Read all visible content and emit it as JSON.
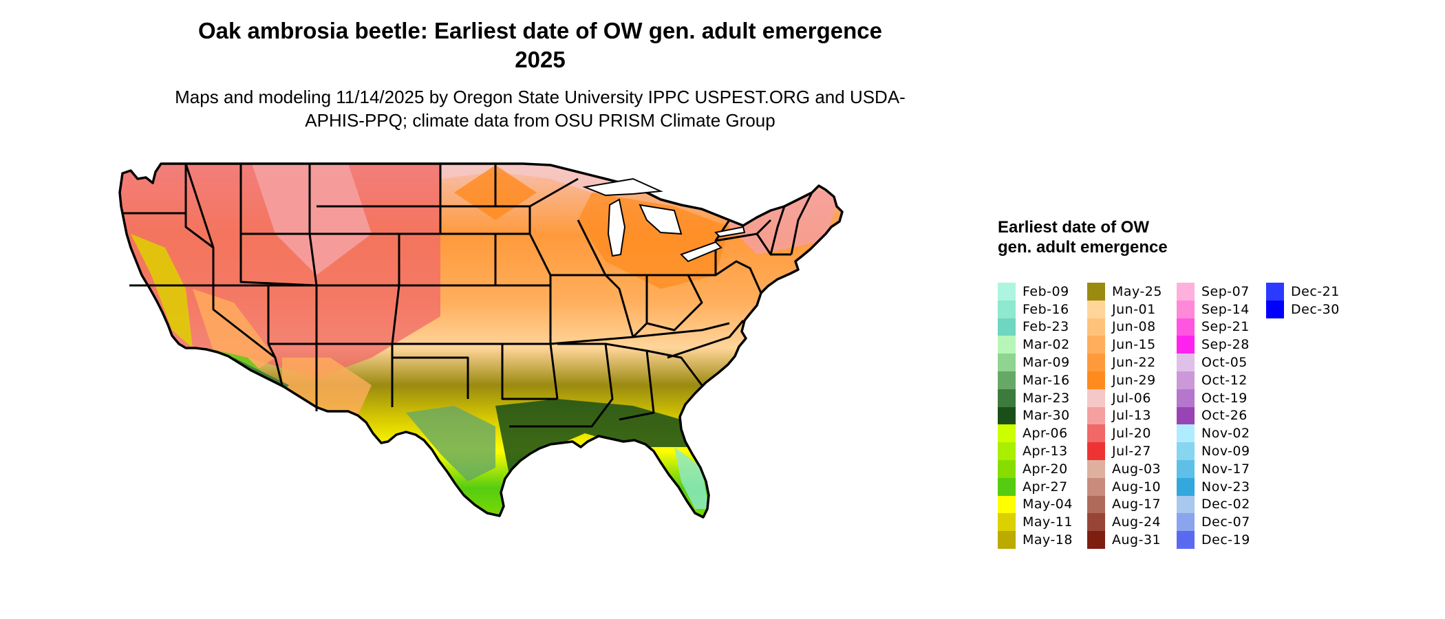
{
  "title": "Oak ambrosia beetle: Earliest date of OW gen. adult emergence 2025",
  "subtitle": "Maps and modeling 11/14/2025 by Oregon State University IPPC USPEST.ORG and USDA-APHIS-PPQ; climate data from OSU PRISM Climate Group",
  "legend": {
    "title": "Earliest date of OW gen. adult emergence",
    "columns": [
      [
        {
          "label": "Feb-09",
          "color": "#aef5e0"
        },
        {
          "label": "Feb-16",
          "color": "#8fe8d0"
        },
        {
          "label": "Feb-23",
          "color": "#6fd6c0"
        },
        {
          "label": "Mar-02",
          "color": "#b8f5b8"
        },
        {
          "label": "Mar-09",
          "color": "#8fd48f"
        },
        {
          "label": "Mar-16",
          "color": "#66a866"
        },
        {
          "label": "Mar-23",
          "color": "#3d7a3d"
        },
        {
          "label": "Mar-30",
          "color": "#1a4f1a"
        },
        {
          "label": "Apr-06",
          "color": "#ccff00"
        },
        {
          "label": "Apr-13",
          "color": "#aaee00"
        },
        {
          "label": "Apr-20",
          "color": "#88dd00"
        },
        {
          "label": "Apr-27",
          "color": "#55cc11"
        },
        {
          "label": "May-04",
          "color": "#ffff00"
        },
        {
          "label": "May-11",
          "color": "#ddd000"
        },
        {
          "label": "May-18",
          "color": "#bbaa00"
        }
      ],
      [
        {
          "label": "May-25",
          "color": "#9b8a10"
        },
        {
          "label": "Jun-01",
          "color": "#ffd59a"
        },
        {
          "label": "Jun-08",
          "color": "#ffc27a"
        },
        {
          "label": "Jun-15",
          "color": "#ffae5c"
        },
        {
          "label": "Jun-22",
          "color": "#ff9a3c"
        },
        {
          "label": "Jun-29",
          "color": "#ff8a1e"
        },
        {
          "label": "Jul-06",
          "color": "#f5c8c8"
        },
        {
          "label": "Jul-13",
          "color": "#f5a0a0"
        },
        {
          "label": "Jul-20",
          "color": "#f06868"
        },
        {
          "label": "Jul-27",
          "color": "#ee3333"
        },
        {
          "label": "Aug-03",
          "color": "#dfb0a0"
        },
        {
          "label": "Aug-10",
          "color": "#c88c7c"
        },
        {
          "label": "Aug-17",
          "color": "#b06a5a"
        },
        {
          "label": "Aug-24",
          "color": "#984538"
        },
        {
          "label": "Aug-31",
          "color": "#7d1e10"
        }
      ],
      [
        {
          "label": "Sep-07",
          "color": "#ffb0dd"
        },
        {
          "label": "Sep-14",
          "color": "#ff88d8"
        },
        {
          "label": "Sep-21",
          "color": "#ff55e0"
        },
        {
          "label": "Sep-28",
          "color": "#ff22ee"
        },
        {
          "label": "Oct-05",
          "color": "#e0c0e8"
        },
        {
          "label": "Oct-12",
          "color": "#cc99d8"
        },
        {
          "label": "Oct-19",
          "color": "#b577cc"
        },
        {
          "label": "Oct-26",
          "color": "#9944b5"
        },
        {
          "label": "Nov-02",
          "color": "#b0ecff"
        },
        {
          "label": "Nov-09",
          "color": "#88d5f0"
        },
        {
          "label": "Nov-17",
          "color": "#5ec0e8"
        },
        {
          "label": "Nov-23",
          "color": "#33a8dd"
        },
        {
          "label": "Dec-02",
          "color": "#a8c8ee"
        },
        {
          "label": "Dec-07",
          "color": "#8aa5ee"
        },
        {
          "label": "Dec-19",
          "color": "#5a6af0"
        }
      ],
      [
        {
          "label": "Dec-21",
          "color": "#2a3aff"
        },
        {
          "label": "Dec-30",
          "color": "#0000ff"
        }
      ]
    ]
  }
}
